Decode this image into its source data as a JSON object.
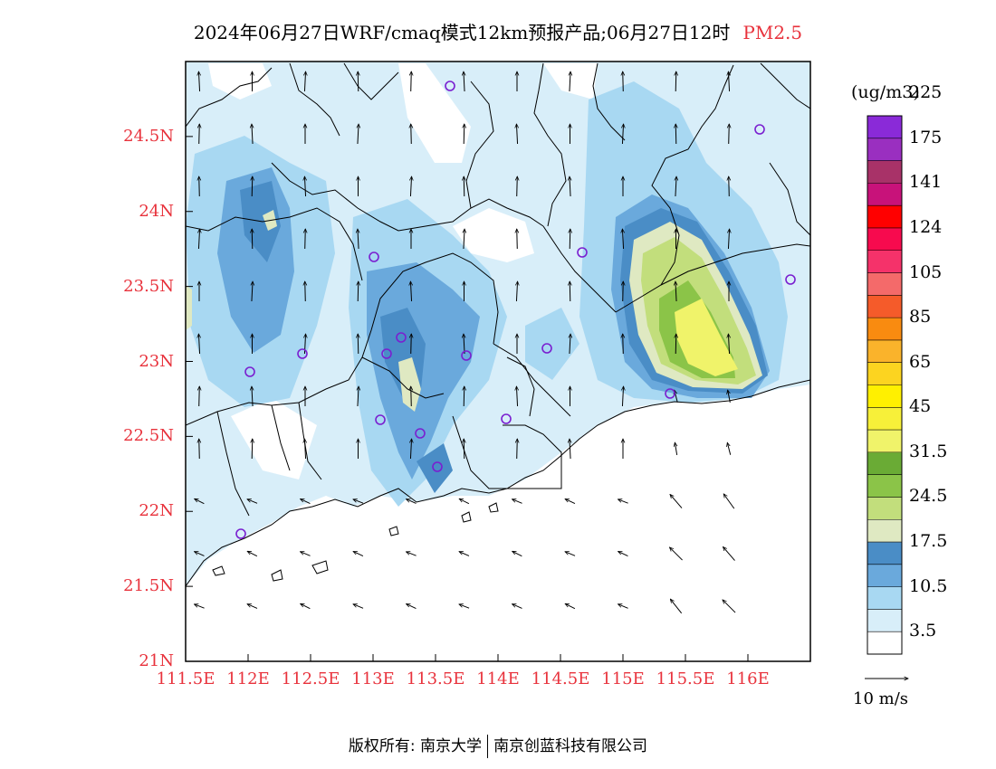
{
  "title": {
    "main": "2024年06月27日WRF/cmaq模式12km预报产品;06月27日12时",
    "variable": "PM2.5"
  },
  "map": {
    "lat_labels": [
      "24.5N",
      "24N",
      "23.5N",
      "23N",
      "22.5N",
      "22N",
      "21.5N",
      "21N"
    ],
    "lon_labels": [
      "111.5E",
      "112E",
      "112.5E",
      "113E",
      "113.5E",
      "114E",
      "114.5E",
      "115E",
      "115.5E",
      "116E"
    ],
    "lon_range": [
      111.5,
      116.5
    ],
    "lat_range": [
      21.0,
      25.0
    ]
  },
  "colorbar": {
    "unit": "(ug/m3)",
    "colors": [
      "#ffffff",
      "#d8eef9",
      "#a8d8f2",
      "#6aa9dc",
      "#4a8dc6",
      "#dfe9c2",
      "#c2de7c",
      "#8bc448",
      "#6aab35",
      "#f0f36a",
      "#f7f039",
      "#fff000",
      "#fcd420",
      "#fab32b",
      "#f98b10",
      "#f55b2a",
      "#f46a6a",
      "#f5326a",
      "#f70a4e",
      "#ff0000",
      "#c8127a",
      "#a83268",
      "#9a2fc0",
      "#8a2ad8"
    ],
    "labels": [
      "3.5",
      "10.5",
      "17.5",
      "24.5",
      "31.5",
      "45",
      "65",
      "85",
      "105",
      "124",
      "141",
      "175",
      "225"
    ]
  },
  "wind_key": {
    "label": "10 m/s"
  },
  "footer": {
    "copyright_left": "版权所有: 南京大学",
    "copyright_right": "南京创蓝科技有限公司"
  }
}
